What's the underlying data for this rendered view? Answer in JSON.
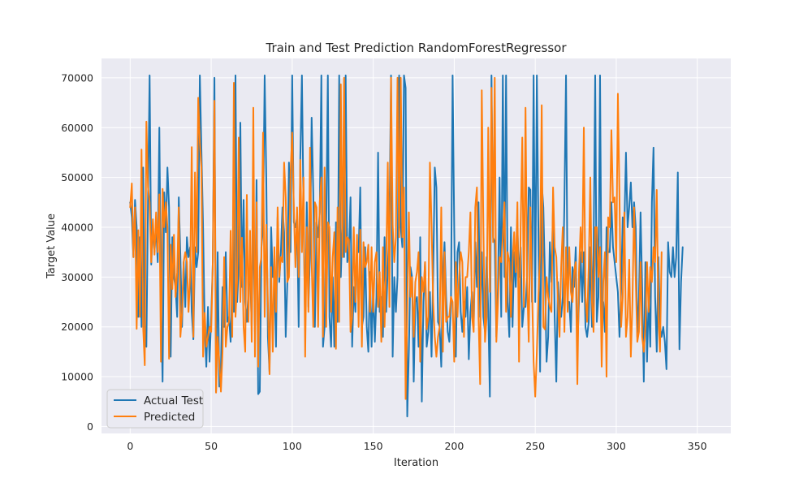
{
  "chart_data": {
    "type": "line",
    "title": "Train and Test Prediction RandomForestRegressor",
    "xlabel": "Iteration",
    "ylabel": "Target Value",
    "xlim": [
      -17.7,
      370.7
    ],
    "ylim": [
      -1400,
      73900
    ],
    "xticks": [
      0,
      50,
      100,
      150,
      200,
      250,
      300,
      350
    ],
    "yticks": [
      0,
      10000,
      20000,
      30000,
      40000,
      50000,
      60000,
      70000
    ],
    "grid": true,
    "legend_position": "lower-left",
    "background_color": "#eaeaf2",
    "grid_color": "#ffffff",
    "series": [
      {
        "name": "Actual Test",
        "color": "#1f77b4",
        "values": [
          45000,
          42000,
          34000,
          45500,
          40000,
          22000,
          38000,
          20000,
          52000,
          17000,
          16000,
          45000,
          70500,
          32500,
          40000,
          35000,
          40000,
          33000,
          60000,
          26000,
          9000,
          47000,
          39000,
          52000,
          44000,
          14000,
          38000,
          30000,
          28000,
          22000,
          46000,
          34000,
          20000,
          33000,
          24000,
          38000,
          34000,
          36000,
          23000,
          17500,
          36000,
          32000,
          35000,
          70500,
          55000,
          40000,
          20000,
          12000,
          24000,
          13000,
          22000,
          33000,
          70000,
          7000,
          35000,
          8000,
          12000,
          28000,
          20000,
          35000,
          21000,
          22000,
          17000,
          30000,
          23000,
          70500,
          25000,
          32000,
          61000,
          28000,
          45500,
          25000,
          21000,
          27000,
          32000,
          20000,
          44000,
          19000,
          49500,
          6500,
          7000,
          36000,
          40000,
          70500,
          50000,
          18000,
          11000,
          40000,
          30000,
          30500,
          16000,
          42000,
          29000,
          35000,
          44000,
          39000,
          18000,
          29000,
          53000,
          35000,
          70500,
          41000,
          40000,
          42000,
          20000,
          54000,
          70500,
          43000,
          20000,
          45000,
          24000,
          35000,
          62000,
          47000,
          20000,
          41000,
          38000,
          43000,
          70500,
          16000,
          20000,
          40000,
          70500,
          22000,
          16000,
          30000,
          16000,
          41000,
          21000,
          70500,
          30000,
          41000,
          34000,
          70500,
          33000,
          35000,
          46000,
          16000,
          28000,
          23000,
          36000,
          35000,
          48000,
          20000,
          22000,
          36000,
          20000,
          15000,
          31000,
          16000,
          28000,
          17000,
          26000,
          55000,
          23000,
          26000,
          18000,
          38000,
          23000,
          32000,
          40000,
          70500,
          14000,
          30000,
          23000,
          30000,
          70500,
          40000,
          36000,
          70500,
          68000,
          2000,
          15000,
          32000,
          30000,
          9000,
          25000,
          26000,
          16000,
          38000,
          5000,
          25000,
          33000,
          16000,
          19000,
          27000,
          14000,
          30000,
          52000,
          48000,
          21000,
          20000,
          12000,
          30000,
          37000,
          26000,
          19000,
          17000,
          25000,
          70500,
          40000,
          14000,
          35000,
          37000,
          23000,
          19000,
          25000,
          22000,
          28000,
          13500,
          23000,
          27000,
          20000,
          37000,
          28000,
          45000,
          22000,
          35000,
          22000,
          19000,
          34000,
          23000,
          6000,
          70500,
          38000,
          37000,
          18000,
          28000,
          50000,
          22000,
          70500,
          30000,
          70500,
          25000,
          18000,
          40000,
          20000,
          35000,
          28000,
          40000,
          30000,
          36000,
          20000,
          24000,
          24000,
          30000,
          48000,
          47500,
          25000,
          70500,
          25000,
          70500,
          38000,
          11000,
          49000,
          44000,
          30000,
          13000,
          18000,
          37000,
          29000,
          44000,
          22000,
          9000,
          29000,
          23000,
          22000,
          26000,
          45000,
          70500,
          25000,
          25000,
          19000,
          32000,
          28000,
          36000,
          16000,
          25000,
          35000,
          25000,
          35000,
          20000,
          18000,
          21000,
          36000,
          20000,
          35000,
          70500,
          21000,
          26000,
          70500,
          22000,
          25000,
          19000,
          40000,
          35000,
          35000,
          45000,
          36000,
          33000,
          30000,
          27000,
          18000,
          27000,
          42000,
          40000,
          55000,
          40000,
          44000,
          49000,
          40000,
          45000,
          40000,
          18000,
          26000,
          43000,
          28000,
          9000,
          33000,
          13000,
          26000,
          16000,
          45000,
          56000,
          26000,
          15000,
          34000,
          20000,
          18000,
          20000,
          17000,
          11500,
          37000,
          31000,
          30000,
          36000,
          30000,
          34000,
          51000,
          15500,
          29000,
          36000
        ],
        "line_width": 2
      },
      {
        "name": "Predicted",
        "color": "#ff7f0e",
        "values": [
          44000,
          48800,
          34000,
          44000,
          19600,
          39400,
          22000,
          55600,
          20000,
          12300,
          61200,
          48000,
          45000,
          33000,
          41600,
          34500,
          43000,
          35000,
          46600,
          13000,
          47700,
          40000,
          45000,
          40000,
          13600,
          36500,
          27600,
          38500,
          26000,
          30900,
          44000,
          18000,
          22800,
          33000,
          35000,
          33000,
          23000,
          30000,
          56100,
          18000,
          51000,
          35000,
          66000,
          57000,
          52000,
          14000,
          22800,
          16000,
          18000,
          20000,
          19000,
          33000,
          65400,
          6800,
          18000,
          13000,
          7000,
          15000,
          34000,
          16000,
          20000,
          21000,
          39300,
          18000,
          69000,
          22000,
          29300,
          58000,
          25000,
          37900,
          20000,
          15000,
          46500,
          21000,
          39300,
          17000,
          64000,
          14000,
          45000,
          12000,
          32000,
          34000,
          59000,
          22000,
          40500,
          25000,
          10500,
          32000,
          15000,
          36000,
          23000,
          44000,
          30000,
          34000,
          33000,
          53000,
          46000,
          29000,
          30000,
          51000,
          59000,
          44000,
          32000,
          44000,
          30000,
          53500,
          35000,
          50000,
          14000,
          40000,
          23000,
          56000,
          33000,
          20000,
          45000,
          44000,
          20000,
          45000,
          50000,
          18000,
          52000,
          20000,
          41000,
          40000,
          23000,
          34000,
          39000,
          15600,
          44000,
          21000,
          68700,
          34000,
          70000,
          35000,
          38000,
          37500,
          19000,
          22000,
          40000,
          25000,
          38500,
          20000,
          39500,
          16000,
          37000,
          32000,
          33000,
          36500,
          23000,
          36000,
          23000,
          33000,
          35000,
          24000,
          31000,
          17000,
          36000,
          20000,
          32500,
          53000,
          24000,
          70000,
          40500,
          33000,
          38000,
          70000,
          38000,
          70000,
          38000,
          48000,
          5500,
          23000,
          43000,
          26000,
          30000,
          18000,
          29000,
          31000,
          35000,
          13000,
          30000,
          27000,
          33000,
          19500,
          22000,
          53000,
          40500,
          25000,
          18000,
          14000,
          18000,
          20000,
          44000,
          15000,
          35000,
          21000,
          22000,
          22000,
          26000,
          25000,
          13000,
          33000,
          22000,
          30000,
          35000,
          33000,
          18000,
          30000,
          30000,
          35000,
          43000,
          22000,
          19000,
          44000,
          48000,
          22000,
          8500,
          67500,
          40000,
          17000,
          22000,
          60000,
          27000,
          68000,
          37000,
          70000,
          17000,
          25000,
          34000,
          33000,
          38000,
          45000,
          23000,
          35000,
          33000,
          22000,
          33000,
          39000,
          31000,
          45000,
          13000,
          40000,
          58000,
          24000,
          64000,
          29000,
          17000,
          44000,
          28000,
          13000,
          6000,
          15000,
          26000,
          35000,
          64500,
          20000,
          19500,
          30000,
          26000,
          24000,
          23000,
          48000,
          36000,
          34000,
          25000,
          18000,
          32000,
          40000,
          19000,
          36000,
          23000,
          36000,
          27000,
          25000,
          31000,
          33000,
          8500,
          31000,
          40000,
          33000,
          60000,
          26000,
          21000,
          32000,
          50000,
          25000,
          19000,
          40000,
          40000,
          30000,
          36000,
          12000,
          29000,
          35000,
          10000,
          42000,
          40000,
          59500,
          45000,
          46000,
          33000,
          66800,
          46000,
          20000,
          26000,
          43000,
          18000,
          22000,
          33500,
          14000,
          25000,
          44000,
          30000,
          17000,
          19000,
          33000,
          18000,
          15000,
          20000,
          33000,
          23000,
          32000,
          29000,
          36000,
          33000,
          47500,
          22000,
          15000,
          35000
        ],
        "line_width": 2
      }
    ]
  }
}
